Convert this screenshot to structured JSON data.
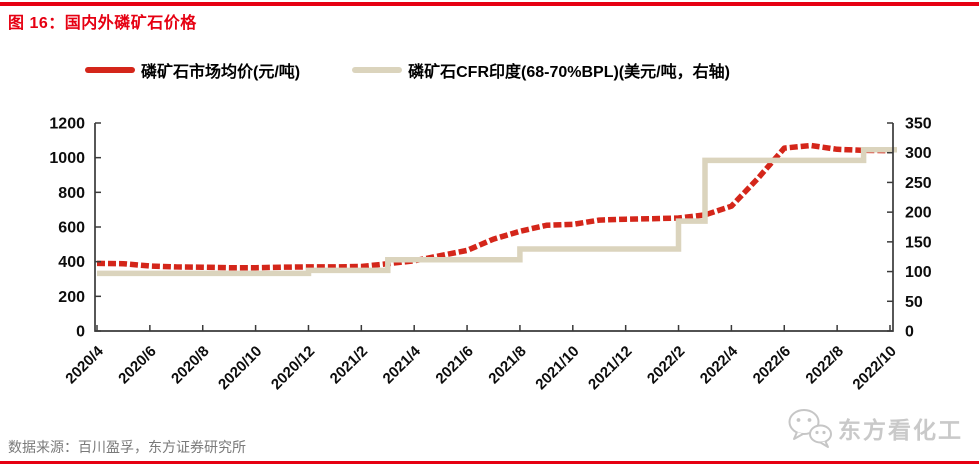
{
  "page": {
    "title": "图 16：国内外磷矿石价格",
    "source_note": "数据来源：百川盈孚，东方证券研究所",
    "watermark": "东方看化工"
  },
  "colors": {
    "accent_red": "#e60012",
    "series_red": "#d4261a",
    "series_beige": "#dbd4bd",
    "axis_black": "#3a3a3a",
    "source_gray": "#7a7a7a",
    "watermark_gray": "#c9c9c9"
  },
  "icons": {
    "watermark_icon": "wechat-chat-bubbles"
  },
  "chart_data": {
    "type": "line",
    "title": "国内外磷矿石价格",
    "grid": false,
    "legend_position": "top",
    "categories": [
      "2020/4",
      "2020/5",
      "2020/6",
      "2020/7",
      "2020/8",
      "2020/9",
      "2020/10",
      "2020/11",
      "2020/12",
      "2021/1",
      "2021/2",
      "2021/3",
      "2021/4",
      "2021/5",
      "2021/6",
      "2021/7",
      "2021/8",
      "2021/9",
      "2021/10",
      "2021/11",
      "2021/12",
      "2022/1",
      "2022/2",
      "2022/3",
      "2022/4",
      "2022/5",
      "2022/6",
      "2022/7",
      "2022/8",
      "2022/9",
      "2022/10"
    ],
    "x_tick_labels": [
      "2020/4",
      "2020/6",
      "2020/8",
      "2020/10",
      "2020/12",
      "2021/2",
      "2021/4",
      "2021/6",
      "2021/8",
      "2021/10",
      "2021/12",
      "2022/2",
      "2022/4",
      "2022/6",
      "2022/8",
      "2022/10"
    ],
    "left_axis": {
      "min": 0,
      "max": 1200,
      "ticks": [
        0,
        200,
        400,
        600,
        800,
        1000,
        1200
      ],
      "unit": "元/吨"
    },
    "right_axis": {
      "min": 0,
      "max": 350,
      "ticks": [
        0,
        50,
        100,
        150,
        200,
        250,
        300,
        350
      ],
      "unit": "美元/吨"
    },
    "series": [
      {
        "name": "磷矿石市场均价(元/吨)",
        "axis": "left",
        "color": "#d4261a",
        "style": "thick-dashed",
        "values": [
          390,
          388,
          375,
          370,
          368,
          365,
          365,
          368,
          370,
          370,
          372,
          388,
          405,
          435,
          465,
          530,
          575,
          610,
          615,
          640,
          645,
          648,
          652,
          670,
          720,
          880,
          1055,
          1070,
          1048,
          1042,
          1040
        ]
      },
      {
        "name": "磷矿石CFR印度(68-70%BPL)(美元/吨，右轴)",
        "axis": "right",
        "color": "#dbd4bd",
        "style": "step",
        "values": [
          97,
          97,
          97,
          97,
          97,
          97,
          97,
          97,
          102,
          102,
          102,
          120,
          120,
          120,
          120,
          120,
          138,
          138,
          138,
          138,
          138,
          138,
          185,
          287,
          287,
          287,
          287,
          287,
          287,
          305,
          305
        ]
      }
    ]
  }
}
